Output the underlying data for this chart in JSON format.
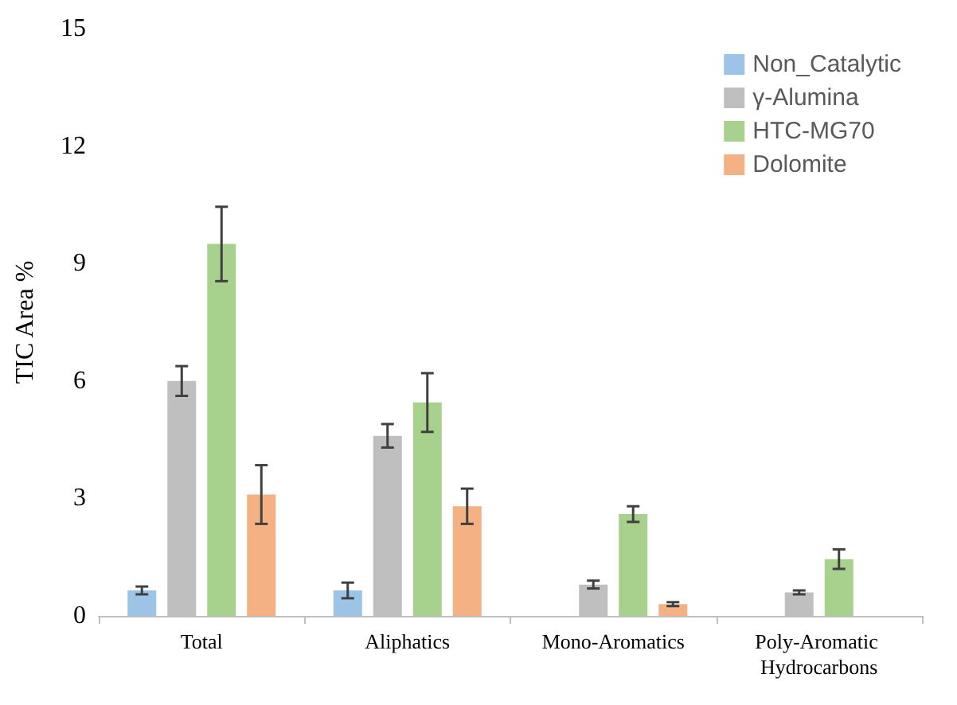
{
  "chart_data": {
    "type": "bar",
    "ylabel": "TIC Area %",
    "categories": [
      "Total",
      "Aliphatics",
      "Mono-Aromatics",
      "Poly-Aromatic Hydrocarbons"
    ],
    "series": [
      {
        "name": "Non_Catalytic",
        "color": "#9dc3e6",
        "values": [
          0.65,
          0.65,
          null,
          null
        ],
        "errors": [
          0.1,
          0.2,
          null,
          null
        ]
      },
      {
        "name": "γ-Alumina",
        "color": "#bfbfbf",
        "values": [
          6.0,
          4.6,
          0.8,
          0.6
        ],
        "errors": [
          0.38,
          0.3,
          0.1,
          0.05
        ]
      },
      {
        "name": "HTC-MG70",
        "color": "#a9d18e",
        "values": [
          9.5,
          5.45,
          2.6,
          1.45
        ],
        "errors": [
          0.95,
          0.75,
          0.2,
          0.25
        ]
      },
      {
        "name": "Dolomite",
        "color": "#f4b183",
        "values": [
          3.1,
          2.8,
          0.3,
          null
        ],
        "errors": [
          0.75,
          0.45,
          0.05,
          null
        ]
      }
    ],
    "ylim": [
      0,
      15
    ],
    "yticks": [
      0,
      3,
      6,
      9,
      12,
      15
    ],
    "grid": false,
    "legend": "top right"
  }
}
